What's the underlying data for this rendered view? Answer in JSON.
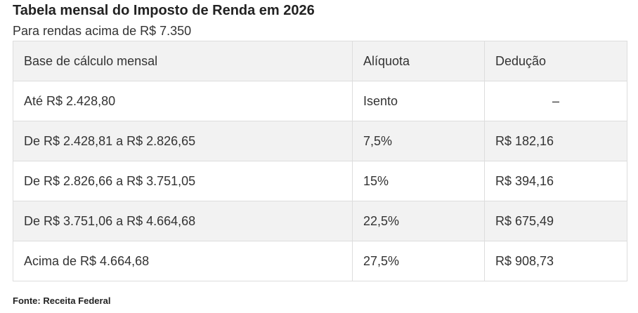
{
  "title": "Tabela mensal do Imposto de Renda em 2026",
  "subtitle": "Para rendas acima de R$ 7.350",
  "table": {
    "headers": [
      "Base de cálculo mensal",
      "Alíquota",
      "Dedução"
    ],
    "rows": [
      [
        "Até R$ 2.428,80",
        "Isento",
        "–"
      ],
      [
        "De R$ 2.428,81 a R$ 2.826,65",
        "7,5%",
        "R$ 182,16"
      ],
      [
        "De R$ 2.826,66 a R$ 3.751,05",
        "15%",
        "R$ 394,16"
      ],
      [
        "De R$ 3.751,06 a R$ 4.664,68",
        "22,5%",
        "R$ 675,49"
      ],
      [
        "Acima de R$ 4.664,68",
        "27,5%",
        "R$ 908,73"
      ]
    ]
  },
  "source": "Fonte: Receita Federal"
}
